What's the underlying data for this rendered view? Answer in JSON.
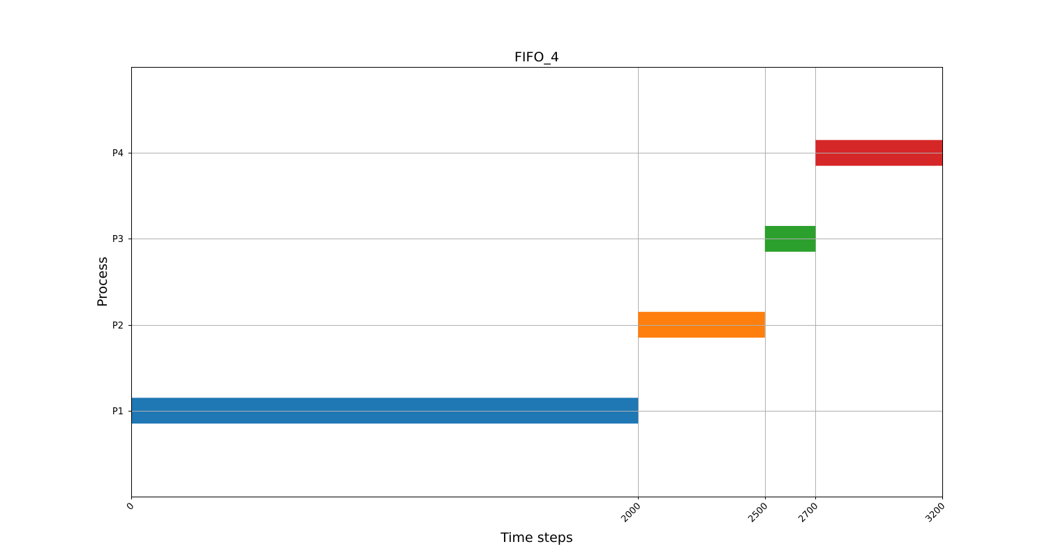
{
  "chart_data": {
    "type": "bar",
    "orientation": "horizontal",
    "title": "FIFO_4",
    "xlabel": "Time steps",
    "ylabel": "Process",
    "xlim": [
      0,
      3200
    ],
    "ylim": [
      0,
      5
    ],
    "x_ticks": [
      0,
      2000,
      2500,
      2700,
      3200
    ],
    "x_tick_labels": [
      "0",
      "2000",
      "2500",
      "2700",
      "3200"
    ],
    "x_tick_rotation": 45,
    "categories": [
      "P1",
      "P2",
      "P3",
      "P4"
    ],
    "y_positions": [
      1,
      2,
      3,
      4
    ],
    "bar_height": 0.3,
    "grid": true,
    "series": [
      {
        "category": "P1",
        "start": 0,
        "end": 2000,
        "color": "#1f77b4"
      },
      {
        "category": "P2",
        "start": 2000,
        "end": 2500,
        "color": "#ff7f0e"
      },
      {
        "category": "P3",
        "start": 2500,
        "end": 2700,
        "color": "#2ca02c"
      },
      {
        "category": "P4",
        "start": 2700,
        "end": 3200,
        "color": "#d62728"
      }
    ]
  }
}
